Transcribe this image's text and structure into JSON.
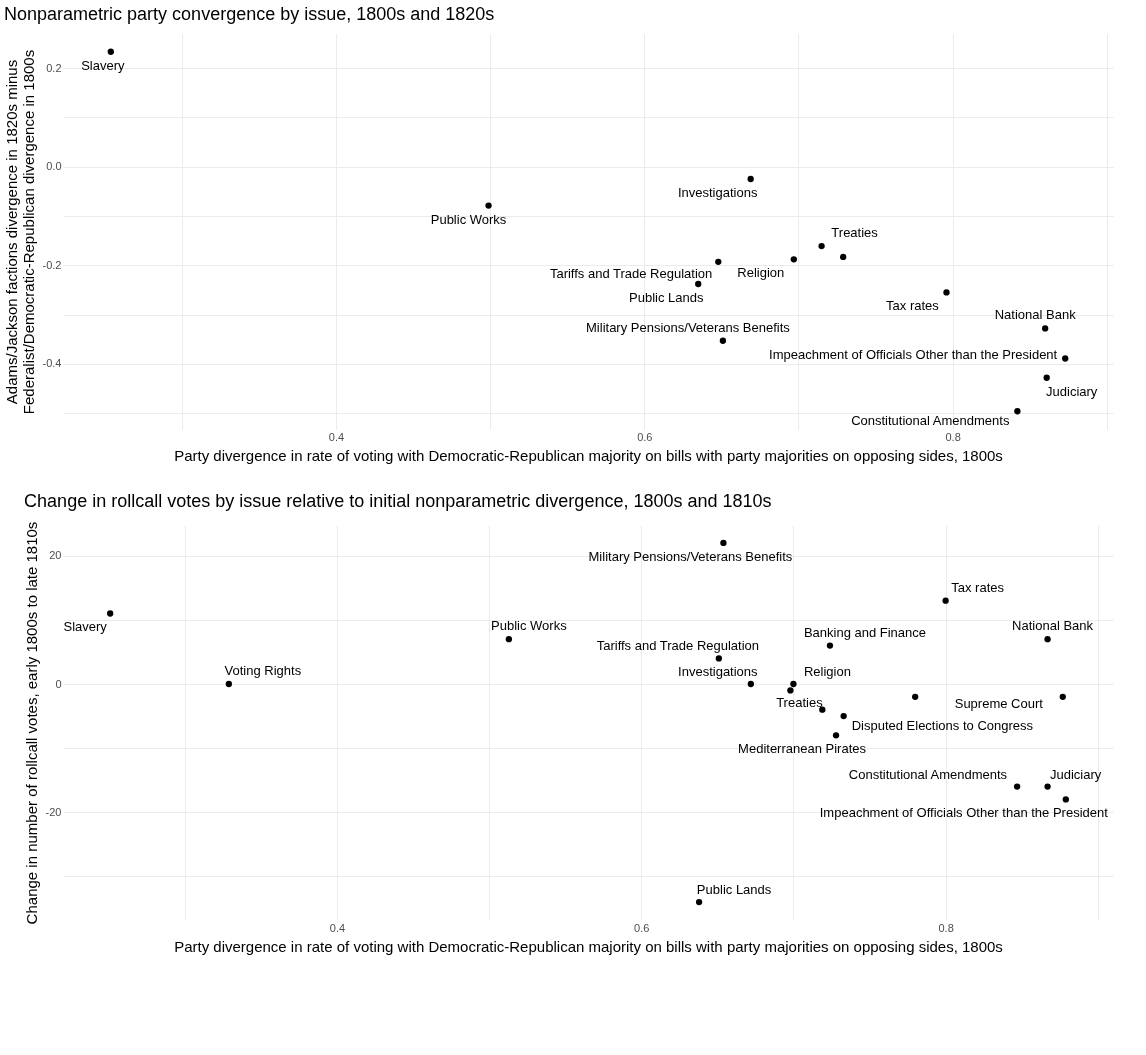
{
  "chart_data": [
    {
      "type": "scatter",
      "title": "Nonparametric party convergence by issue, 1800s and 1820s",
      "xlabel": "Party divergence in rate of voting with Democratic-Republican majority on bills with party majorities on opposing sides, 1800s",
      "ylabel": "Adams/Jackson factions divergence in 1820s minus\nFederalist/Democratic-Republican divergence in 1800s",
      "x": [
        0.254,
        0.499,
        0.669,
        0.715,
        0.729,
        0.697,
        0.648,
        0.635,
        0.796,
        0.86,
        0.651,
        0.873,
        0.861,
        0.842
      ],
      "values": [
        0.233,
        -0.079,
        -0.025,
        -0.161,
        -0.183,
        -0.188,
        -0.193,
        -0.238,
        -0.255,
        -0.328,
        -0.353,
        -0.389,
        -0.428,
        -0.496
      ],
      "color": "#000000",
      "marker": "circle",
      "grid": true,
      "xlim": [
        0.223,
        0.904
      ],
      "ylim": [
        -0.532,
        0.269
      ],
      "xticks": [
        {
          "value": 0.3,
          "label": null
        },
        0.4,
        {
          "value": 0.5,
          "label": null
        },
        0.6,
        {
          "value": 0.7,
          "label": null
        },
        0.8,
        {
          "value": 0.9,
          "label": null
        }
      ],
      "yticks": [
        {
          "value": -0.5,
          "label": null
        },
        -0.4,
        {
          "value": -0.3,
          "label": null
        },
        -0.2,
        {
          "value": -0.1,
          "label": null
        },
        {
          "value": 0,
          "label": "0.0"
        },
        {
          "value": 0.1,
          "label": null
        },
        0.2
      ],
      "annotations": [
        {
          "text": "Slavery",
          "x": 0.254,
          "y": 0.233
        },
        {
          "text": "Public Works",
          "x": 0.499,
          "y": -0.079
        },
        {
          "text": "Investigations",
          "x": 0.669,
          "y": -0.025
        },
        {
          "text": "Treaties",
          "x": 0.715,
          "y": -0.161
        },
        {
          "text": "Religion",
          "x": 0.697,
          "y": -0.188
        },
        {
          "text": "Tariffs and Trade Regulation",
          "x": 0.648,
          "y": -0.193
        },
        {
          "text": "Public Lands",
          "x": 0.635,
          "y": -0.238
        },
        {
          "text": "Tax rates",
          "x": 0.796,
          "y": -0.255
        },
        {
          "text": "National Bank",
          "x": 0.86,
          "y": -0.328
        },
        {
          "text": "Military Pensions/Veterans Benefits",
          "x": 0.651,
          "y": -0.353
        },
        {
          "text": "Impeachment of Officials Other than the President",
          "x": 0.873,
          "y": -0.389
        },
        {
          "text": "Judiciary",
          "x": 0.861,
          "y": -0.428
        },
        {
          "text": "Constitutional Amendments",
          "x": 0.842,
          "y": -0.496
        }
      ]
    },
    {
      "type": "scatter",
      "title": "Change in rollcall votes by issue relative to initial nonparametric divergence, 1800s and 1810s",
      "xlabel": "Party divergence in rate of voting with Democratic-Republican majority on bills with party majorities on opposing sides, 1800s",
      "ylabel": "Change in number of rollcall votes, early 1800s to late 1810s",
      "x": [
        0.654,
        0.8,
        0.251,
        0.867,
        0.513,
        0.724,
        0.651,
        0.329,
        0.672,
        0.7,
        0.698,
        0.78,
        0.877,
        0.719,
        0.733,
        0.728,
        0.847,
        0.867,
        0.879,
        0.638
      ],
      "values": [
        22,
        13,
        11,
        7,
        7,
        6,
        4,
        0,
        0,
        0,
        -1,
        -2,
        -2,
        -4,
        -5,
        -8,
        -16,
        -16,
        -18,
        -34
      ],
      "color": "#000000",
      "marker": "circle",
      "grid": true,
      "xlim": [
        0.22,
        0.91
      ],
      "ylim": [
        -36.8,
        24.8
      ],
      "xticks": [
        {
          "value": 0.3,
          "label": null
        },
        0.4,
        {
          "value": 0.5,
          "label": null
        },
        0.6,
        {
          "value": 0.7,
          "label": null
        },
        0.8,
        {
          "value": 0.9,
          "label": null
        }
      ],
      "yticks": [
        {
          "value": -30,
          "label": null
        },
        -20,
        {
          "value": -10,
          "label": null
        },
        0,
        {
          "value": 10,
          "label": null
        },
        20
      ],
      "annotations": [
        {
          "text": "Military Pensions/Veterans Benefits",
          "x": 0.654,
          "y": 22
        },
        {
          "text": "Tax rates",
          "x": 0.8,
          "y": 13
        },
        {
          "text": "Slavery",
          "x": 0.251,
          "y": 11
        },
        {
          "text": "National Bank",
          "x": 0.867,
          "y": 7
        },
        {
          "text": "Public Works",
          "x": 0.513,
          "y": 7
        },
        {
          "text": "Banking and Finance",
          "x": 0.724,
          "y": 6
        },
        {
          "text": "Tariffs and Trade Regulation",
          "x": 0.651,
          "y": 4
        },
        {
          "text": "Voting Rights",
          "x": 0.329,
          "y": 0
        },
        {
          "text": "Investigations",
          "x": 0.672,
          "y": 0
        },
        {
          "text": "Religion",
          "x": 0.7,
          "y": 0
        },
        {
          "text": "Treaties",
          "x": 0.698,
          "y": -1
        },
        {
          "text": "Supreme Court",
          "x": 0.877,
          "y": -2
        },
        {
          "text": "Disputed Elections to Congress",
          "x": 0.733,
          "y": -5
        },
        {
          "text": "Mediterranean Pirates",
          "x": 0.728,
          "y": -8
        },
        {
          "text": "Constitutional Amendments",
          "x": 0.847,
          "y": -16
        },
        {
          "text": "Judiciary",
          "x": 0.867,
          "y": -16
        },
        {
          "text": "Impeachment of Officials Other than the President",
          "x": 0.879,
          "y": -18
        },
        {
          "text": "Public Lands",
          "x": 0.638,
          "y": -34
        }
      ]
    }
  ]
}
